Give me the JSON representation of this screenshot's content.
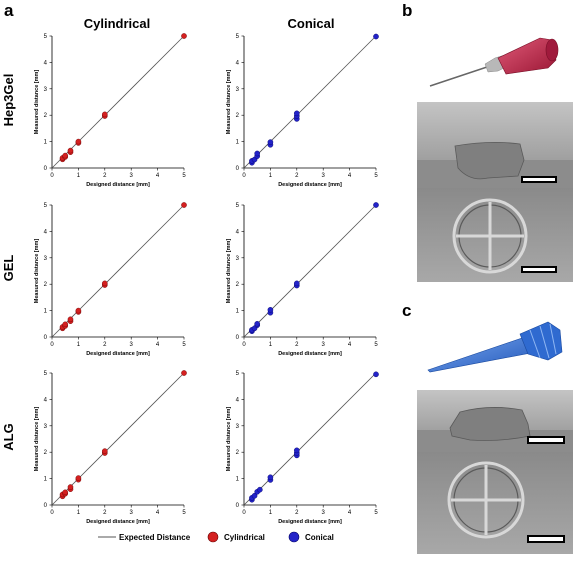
{
  "panels": {
    "a": "a",
    "b": "b",
    "c": "c"
  },
  "column_titles": [
    "Cylindrical",
    "Conical"
  ],
  "row_titles": [
    "Hep3Gel",
    "GEL",
    "ALG"
  ],
  "legend": {
    "expected": "Expected Distance",
    "cylindrical": "Cylindrical",
    "conical": "Conical"
  },
  "colors": {
    "cylindrical": "#d42020",
    "conical": "#2323c8",
    "expected_line": "#555555",
    "needle_red": "#c8284a",
    "tip_blue": "#3a78d8",
    "photo_gray": "#9a9a9a"
  },
  "photos": [
    {
      "panel": "b",
      "object": "red cylindrical needle",
      "views": [
        "side view scaffold",
        "top view scaffold"
      ]
    },
    {
      "panel": "c",
      "object": "blue conical tip",
      "views": [
        "side view scaffold",
        "top view scaffold"
      ]
    }
  ],
  "chart_data": [
    {
      "type": "scatter",
      "row": "Hep3Gel",
      "col": "Cylindrical",
      "xlabel": "Designed distance [mm]",
      "ylabel": "Measured distance [mm]",
      "xlim": [
        0,
        5
      ],
      "ylim": [
        0,
        5
      ],
      "xticks": [
        0,
        1,
        2,
        3,
        4,
        5
      ],
      "yticks": [
        0,
        1,
        2,
        3,
        4,
        5
      ],
      "series": [
        {
          "name": "Cylindrical",
          "x": [
            0.4,
            0.4,
            0.5,
            0.5,
            0.7,
            0.7,
            1.0,
            1.0,
            2.0,
            2.0,
            5.0
          ],
          "y": [
            0.33,
            0.38,
            0.42,
            0.47,
            0.6,
            0.66,
            0.95,
            1.0,
            1.97,
            2.03,
            5.0
          ]
        }
      ]
    },
    {
      "type": "scatter",
      "row": "Hep3Gel",
      "col": "Conical",
      "xlabel": "Designed distance [mm]",
      "ylabel": "Measured distance [mm]",
      "xlim": [
        0,
        5
      ],
      "ylim": [
        0,
        5
      ],
      "xticks": [
        0,
        1,
        2,
        3,
        4,
        5
      ],
      "yticks": [
        0,
        1,
        2,
        3,
        4,
        5
      ],
      "series": [
        {
          "name": "Conical",
          "x": [
            0.3,
            0.3,
            0.4,
            0.5,
            0.5,
            1.0,
            1.0,
            2.0,
            2.0,
            2.0,
            5.0
          ],
          "y": [
            0.2,
            0.27,
            0.32,
            0.45,
            0.55,
            0.88,
            0.98,
            1.86,
            1.97,
            2.07,
            4.98
          ]
        }
      ]
    },
    {
      "type": "scatter",
      "row": "GEL",
      "col": "Cylindrical",
      "xlabel": "Designed distance [mm]",
      "ylabel": "Measured distance [mm]",
      "xlim": [
        0,
        5
      ],
      "ylim": [
        0,
        5
      ],
      "xticks": [
        0,
        1,
        2,
        3,
        4,
        5
      ],
      "yticks": [
        0,
        1,
        2,
        3,
        4,
        5
      ],
      "series": [
        {
          "name": "Cylindrical",
          "x": [
            0.4,
            0.4,
            0.5,
            0.5,
            0.7,
            0.7,
            1.0,
            1.0,
            2.0,
            2.0,
            5.0
          ],
          "y": [
            0.33,
            0.38,
            0.42,
            0.48,
            0.6,
            0.67,
            0.95,
            1.0,
            1.97,
            2.03,
            5.0
          ]
        }
      ]
    },
    {
      "type": "scatter",
      "row": "GEL",
      "col": "Conical",
      "xlabel": "Designed distance [mm]",
      "ylabel": "Measured distance [mm]",
      "xlim": [
        0,
        5
      ],
      "ylim": [
        0,
        5
      ],
      "xticks": [
        0,
        1,
        2,
        3,
        4,
        5
      ],
      "yticks": [
        0,
        1,
        2,
        3,
        4,
        5
      ],
      "series": [
        {
          "name": "Conical",
          "x": [
            0.3,
            0.3,
            0.4,
            0.5,
            0.5,
            1.0,
            1.0,
            2.0,
            2.0,
            5.0
          ],
          "y": [
            0.22,
            0.27,
            0.33,
            0.45,
            0.5,
            0.92,
            1.03,
            1.95,
            2.03,
            5.0
          ]
        }
      ]
    },
    {
      "type": "scatter",
      "row": "ALG",
      "col": "Cylindrical",
      "xlabel": "Designed distance [mm]",
      "ylabel": "Measured distance [mm]",
      "xlim": [
        0,
        5
      ],
      "ylim": [
        0,
        5
      ],
      "xticks": [
        0,
        1,
        2,
        3,
        4,
        5
      ],
      "yticks": [
        0,
        1,
        2,
        3,
        4,
        5
      ],
      "series": [
        {
          "name": "Cylindrical",
          "x": [
            0.4,
            0.4,
            0.5,
            0.5,
            0.7,
            0.7,
            1.0,
            1.0,
            2.0,
            2.0,
            5.0
          ],
          "y": [
            0.33,
            0.4,
            0.43,
            0.48,
            0.6,
            0.68,
            0.96,
            1.02,
            1.97,
            2.04,
            5.0
          ]
        }
      ]
    },
    {
      "type": "scatter",
      "row": "ALG",
      "col": "Conical",
      "xlabel": "Designed distance [mm]",
      "ylabel": "Measured distance [mm]",
      "xlim": [
        0,
        5
      ],
      "ylim": [
        0,
        5
      ],
      "xticks": [
        0,
        1,
        2,
        3,
        4,
        5
      ],
      "yticks": [
        0,
        1,
        2,
        3,
        4,
        5
      ],
      "series": [
        {
          "name": "Conical",
          "x": [
            0.3,
            0.3,
            0.4,
            0.5,
            0.6,
            1.0,
            1.0,
            2.0,
            2.0,
            2.0,
            5.0
          ],
          "y": [
            0.2,
            0.27,
            0.35,
            0.5,
            0.58,
            0.95,
            1.05,
            1.88,
            1.97,
            2.07,
            4.95
          ]
        }
      ]
    }
  ]
}
